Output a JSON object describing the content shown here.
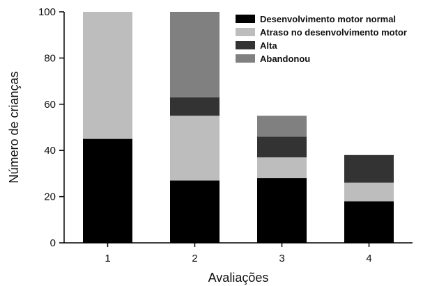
{
  "chart_data": {
    "type": "bar",
    "stacked": true,
    "categories": [
      "1",
      "2",
      "3",
      "4"
    ],
    "series": [
      {
        "name": "Desenvolvimento motor normal",
        "color": "#000000",
        "values": [
          45,
          27,
          28,
          18
        ]
      },
      {
        "name": "Atraso no desenvolvimento motor",
        "color": "#bdbdbd",
        "values": [
          55,
          28,
          9,
          8
        ]
      },
      {
        "name": "Alta",
        "color": "#333333",
        "values": [
          0,
          8,
          9,
          12
        ]
      },
      {
        "name": "Abandonou",
        "color": "#808080",
        "values": [
          0,
          37,
          9,
          0
        ]
      }
    ],
    "xlabel": "Avaliações",
    "ylabel": "Número de crianças",
    "ylim": [
      0,
      100
    ],
    "yticks": [
      0,
      20,
      40,
      60,
      80,
      100
    ],
    "grid": false,
    "legend_position": "top-right"
  }
}
